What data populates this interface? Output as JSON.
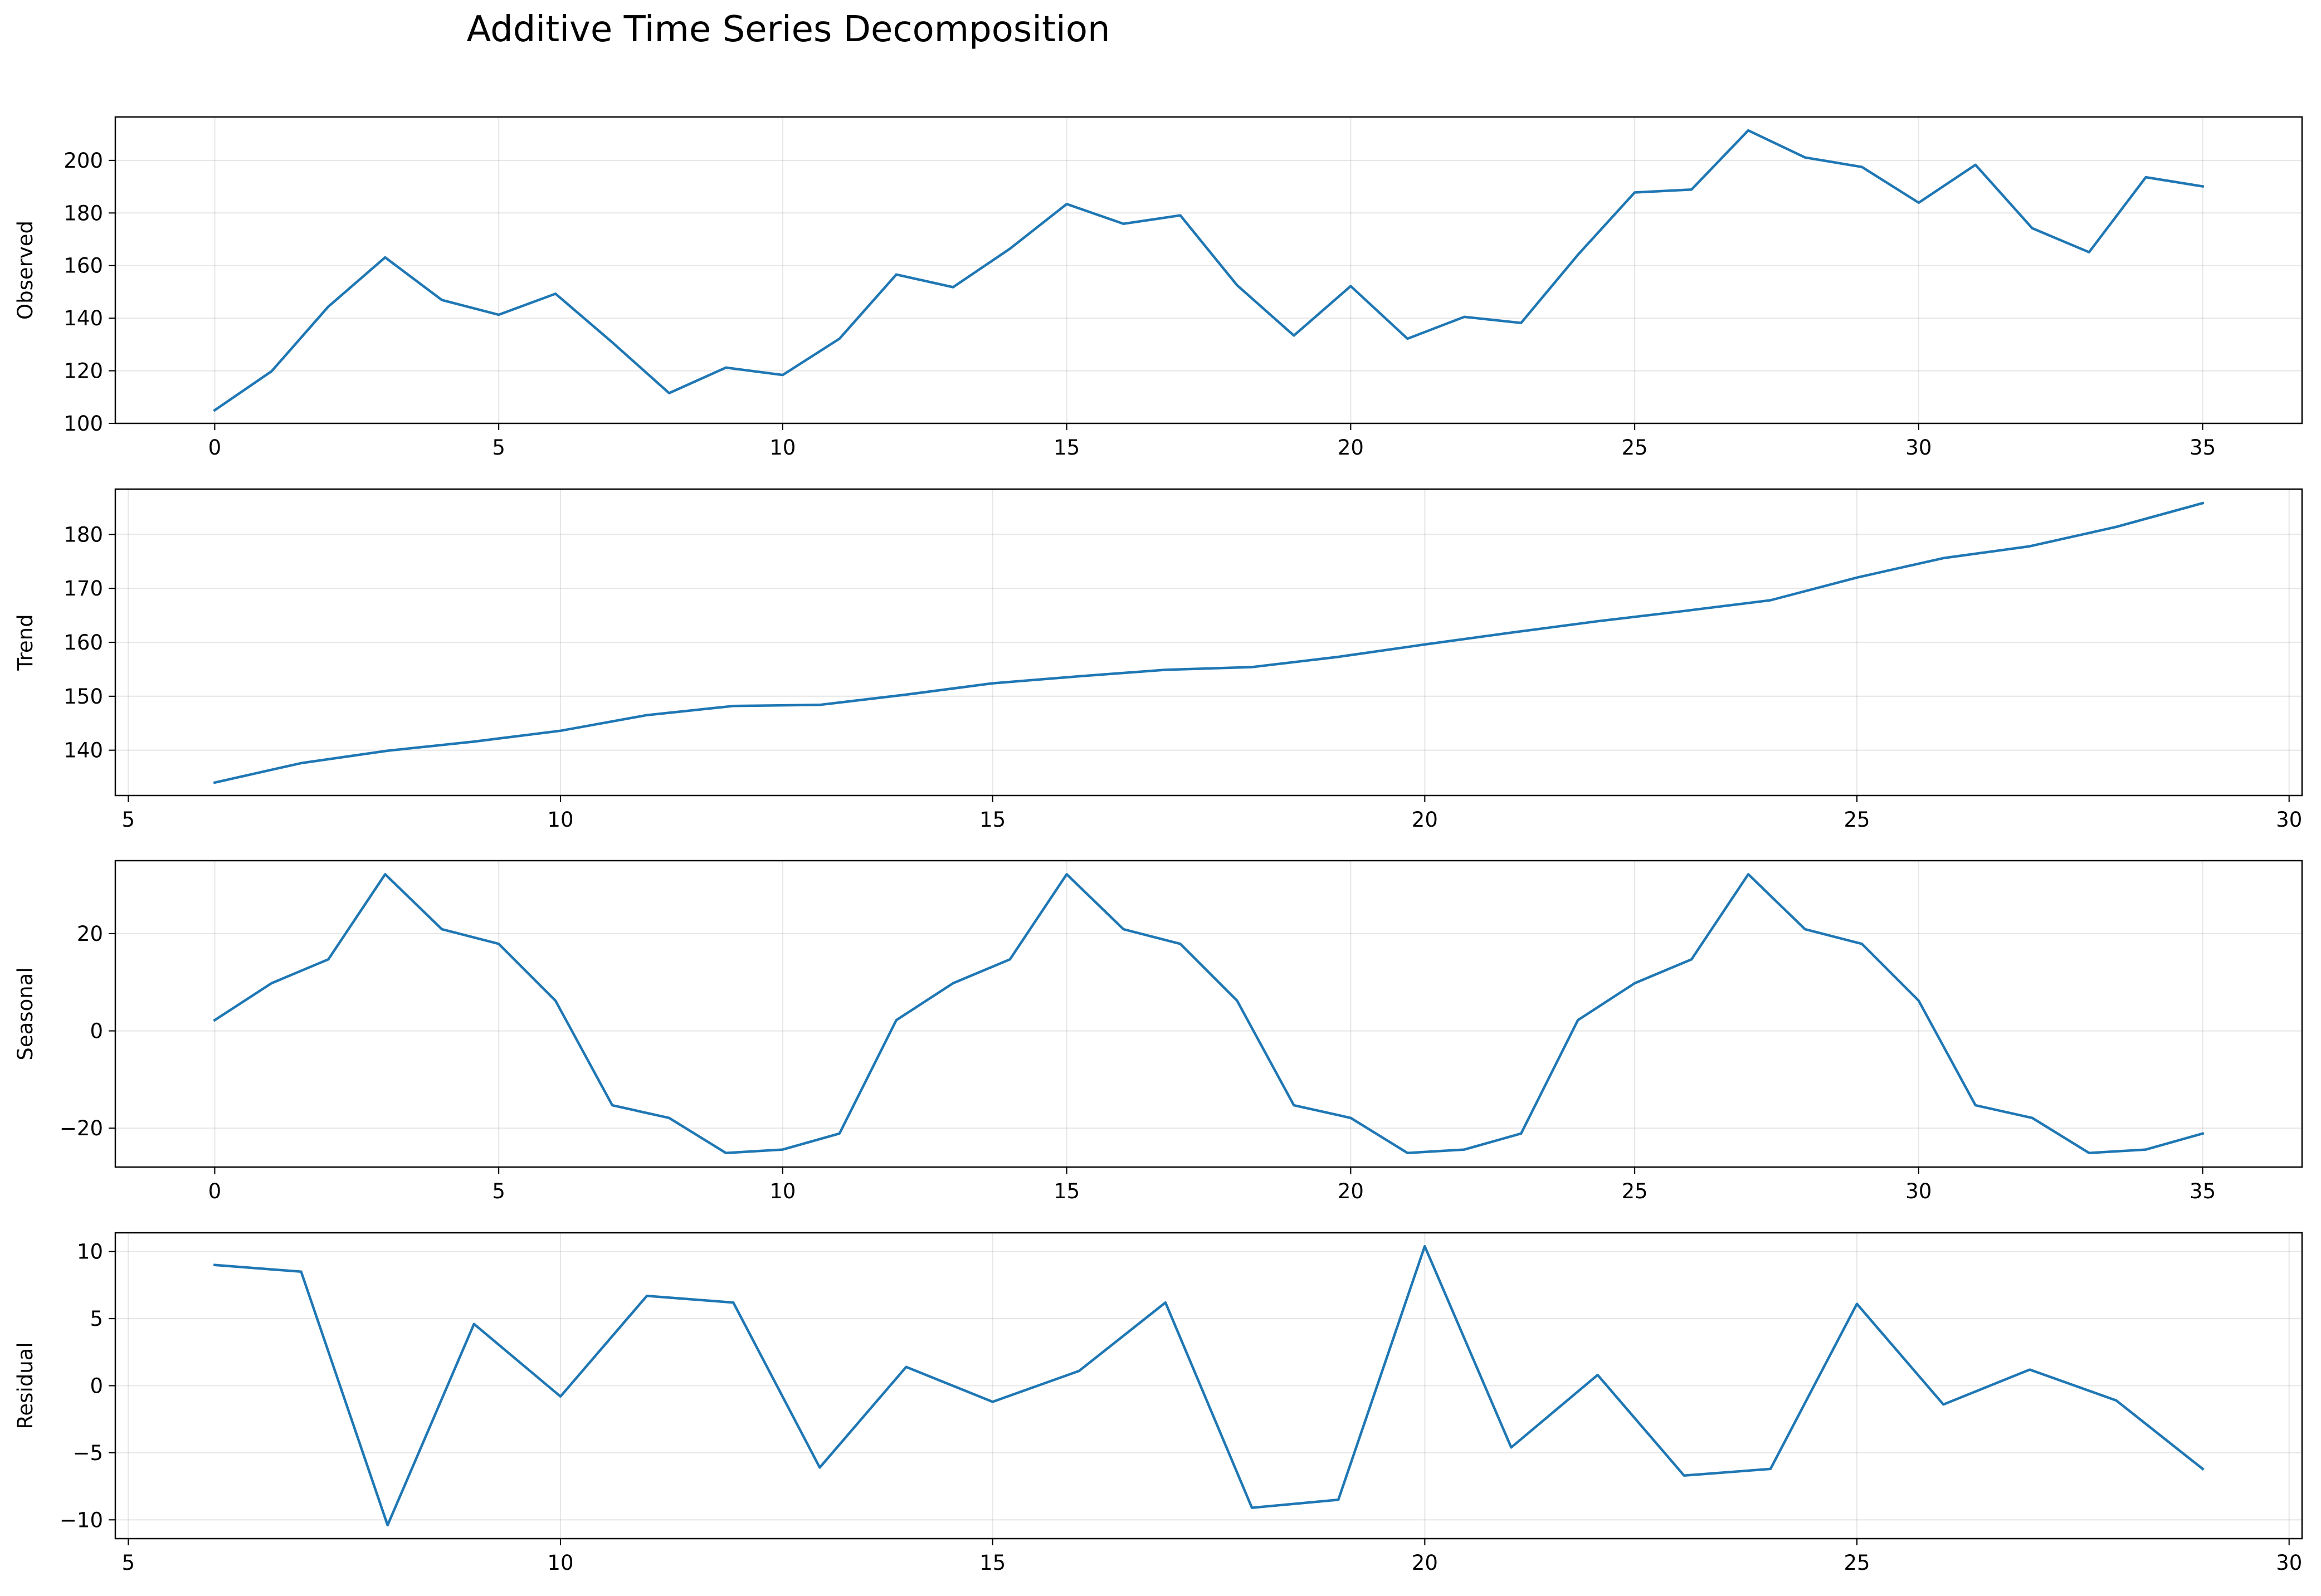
{
  "title": "Additive Time Series Decomposition",
  "colors": {
    "line": "#1f77b4",
    "grid": "#b0b0b0",
    "axis": "#000000"
  },
  "chart_data": [
    {
      "type": "line",
      "name": "observed",
      "ylabel": "Observed",
      "xlabel": "",
      "grid": true,
      "xlim": [
        -1.75,
        36.75
      ],
      "ylim": [
        100,
        216.5
      ],
      "xticks": [
        0,
        5,
        10,
        15,
        20,
        25,
        30,
        35
      ],
      "yticks": [
        100,
        120,
        140,
        160,
        180,
        200
      ],
      "x": [
        0,
        1,
        2,
        3,
        4,
        5,
        6,
        7,
        8,
        9,
        10,
        11,
        12,
        13,
        14,
        15,
        16,
        17,
        18,
        19,
        20,
        21,
        22,
        23,
        24,
        25,
        26,
        27,
        28,
        29,
        30,
        31,
        32,
        33,
        34,
        35
      ],
      "y": [
        105.0,
        119.8,
        144.4,
        163.1,
        146.9,
        141.3,
        149.3,
        130.8,
        111.5,
        121.2,
        118.4,
        132.2,
        156.6,
        151.8,
        166.4,
        183.4,
        175.9,
        179.1,
        152.5,
        133.4,
        152.2,
        132.2,
        140.5,
        138.2,
        164.1,
        187.8,
        188.9,
        211.4,
        201.1,
        197.5,
        183.9,
        198.3,
        174.2,
        165.1,
        193.6,
        190.1
      ]
    },
    {
      "type": "line",
      "name": "trend",
      "ylabel": "Trend",
      "xlabel": "",
      "grid": true,
      "xlim": [
        4.85,
        30.15
      ],
      "ylim": [
        131.6,
        188.4
      ],
      "xticks": [
        5,
        10,
        15,
        20,
        25,
        30
      ],
      "yticks": [
        140,
        150,
        160,
        170,
        180
      ],
      "x": [
        6,
        7,
        8,
        9,
        10,
        11,
        12,
        13,
        14,
        15,
        16,
        17,
        18,
        19,
        20,
        21,
        22,
        23,
        24,
        25,
        26,
        27,
        28,
        29
      ],
      "y": [
        134.0,
        137.6,
        139.9,
        141.6,
        143.6,
        146.5,
        148.2,
        148.4,
        150.3,
        152.4,
        153.7,
        154.9,
        155.4,
        157.3,
        159.6,
        161.8,
        163.9,
        165.8,
        167.8,
        172.0,
        175.6,
        177.8,
        181.4,
        185.8
      ]
    },
    {
      "type": "line",
      "name": "seasonal",
      "ylabel": "Seasonal",
      "xlabel": "",
      "grid": true,
      "xlim": [
        -1.75,
        36.75
      ],
      "ylim": [
        -28.0,
        35.0
      ],
      "xticks": [
        0,
        5,
        10,
        15,
        20,
        25,
        30,
        35
      ],
      "yticks": [
        -20,
        0,
        20
      ],
      "x": [
        0,
        1,
        2,
        3,
        4,
        5,
        6,
        7,
        8,
        9,
        10,
        11,
        12,
        13,
        14,
        15,
        16,
        17,
        18,
        19,
        20,
        21,
        22,
        23,
        24,
        25,
        26,
        27,
        28,
        29,
        30,
        31,
        32,
        33,
        34,
        35
      ],
      "y": [
        2.2,
        9.8,
        14.7,
        32.2,
        20.9,
        17.9,
        6.2,
        -15.3,
        -17.9,
        -25.1,
        -24.4,
        -21.1,
        2.2,
        9.8,
        14.7,
        32.2,
        20.9,
        17.9,
        6.2,
        -15.3,
        -17.9,
        -25.1,
        -24.4,
        -21.1,
        2.2,
        9.8,
        14.7,
        32.2,
        20.9,
        17.9,
        6.2,
        -15.3,
        -17.9,
        -25.1,
        -24.4,
        -21.1
      ]
    },
    {
      "type": "line",
      "name": "residual",
      "ylabel": "Residual",
      "xlabel": "",
      "grid": true,
      "xlim": [
        4.85,
        30.15
      ],
      "ylim": [
        -11.4,
        11.4
      ],
      "xticks": [
        5,
        10,
        15,
        20,
        25,
        30
      ],
      "yticks": [
        -10,
        -5,
        0,
        5,
        10
      ],
      "x": [
        6,
        7,
        8,
        9,
        10,
        11,
        12,
        13,
        14,
        15,
        16,
        17,
        18,
        19,
        20,
        21,
        22,
        23,
        24,
        25,
        26,
        27,
        28,
        29
      ],
      "y": [
        9.0,
        8.5,
        -10.4,
        4.6,
        -0.8,
        6.7,
        6.2,
        -6.1,
        1.4,
        -1.2,
        1.1,
        6.2,
        -9.1,
        -8.5,
        10.4,
        -4.6,
        0.8,
        -6.7,
        -6.2,
        6.1,
        -1.4,
        1.2,
        -1.1,
        -6.2
      ]
    }
  ]
}
